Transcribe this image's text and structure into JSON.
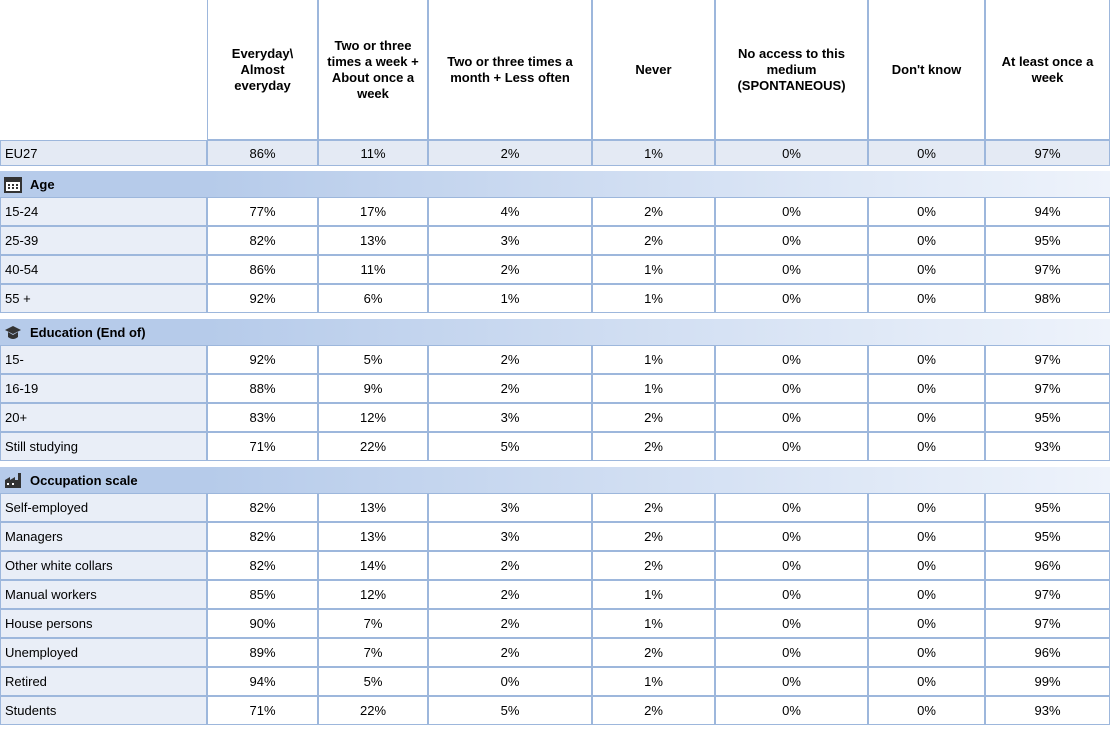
{
  "table": {
    "columns": [
      "Everyday\\ Almost everyday",
      "Two or three times a week + About once a week",
      "Two or three times a month + Less often",
      "Never",
      "No access to this medium (SPONTANEOUS)",
      "Don't know",
      "At least once a week"
    ],
    "total": {
      "label": "EU27",
      "values": [
        "86%",
        "11%",
        "2%",
        "1%",
        "0%",
        "0%",
        "97%"
      ]
    },
    "groups": [
      {
        "title": "Age",
        "rows": [
          {
            "label": "15-24",
            "values": [
              "77%",
              "17%",
              "4%",
              "2%",
              "0%",
              "0%",
              "94%"
            ]
          },
          {
            "label": "25-39",
            "values": [
              "82%",
              "13%",
              "3%",
              "2%",
              "0%",
              "0%",
              "95%"
            ]
          },
          {
            "label": "40-54",
            "values": [
              "86%",
              "11%",
              "2%",
              "1%",
              "0%",
              "0%",
              "97%"
            ]
          },
          {
            "label": "55 +",
            "values": [
              "92%",
              "6%",
              "1%",
              "1%",
              "0%",
              "0%",
              "98%"
            ]
          }
        ]
      },
      {
        "title": "Education (End of)",
        "rows": [
          {
            "label": "15-",
            "values": [
              "92%",
              "5%",
              "2%",
              "1%",
              "0%",
              "0%",
              "97%"
            ]
          },
          {
            "label": "16-19",
            "values": [
              "88%",
              "9%",
              "2%",
              "1%",
              "0%",
              "0%",
              "97%"
            ]
          },
          {
            "label": "20+",
            "values": [
              "83%",
              "12%",
              "3%",
              "2%",
              "0%",
              "0%",
              "95%"
            ]
          },
          {
            "label": "Still studying",
            "values": [
              "71%",
              "22%",
              "5%",
              "2%",
              "0%",
              "0%",
              "93%"
            ]
          }
        ]
      },
      {
        "title": "Occupation scale",
        "rows": [
          {
            "label": "Self-employed",
            "values": [
              "82%",
              "13%",
              "3%",
              "2%",
              "0%",
              "0%",
              "95%"
            ]
          },
          {
            "label": "Managers",
            "values": [
              "82%",
              "13%",
              "3%",
              "2%",
              "0%",
              "0%",
              "95%"
            ]
          },
          {
            "label": "Other white collars",
            "values": [
              "82%",
              "14%",
              "2%",
              "2%",
              "0%",
              "0%",
              "96%"
            ]
          },
          {
            "label": "Manual workers",
            "values": [
              "85%",
              "12%",
              "2%",
              "1%",
              "0%",
              "0%",
              "97%"
            ]
          },
          {
            "label": "House persons",
            "values": [
              "90%",
              "7%",
              "2%",
              "1%",
              "0%",
              "0%",
              "97%"
            ]
          },
          {
            "label": "Unemployed",
            "values": [
              "89%",
              "7%",
              "2%",
              "2%",
              "0%",
              "0%",
              "96%"
            ]
          },
          {
            "label": "Retired",
            "values": [
              "94%",
              "5%",
              "0%",
              "1%",
              "0%",
              "0%",
              "99%"
            ]
          },
          {
            "label": "Students",
            "values": [
              "71%",
              "22%",
              "5%",
              "2%",
              "0%",
              "0%",
              "93%"
            ]
          }
        ]
      }
    ]
  }
}
